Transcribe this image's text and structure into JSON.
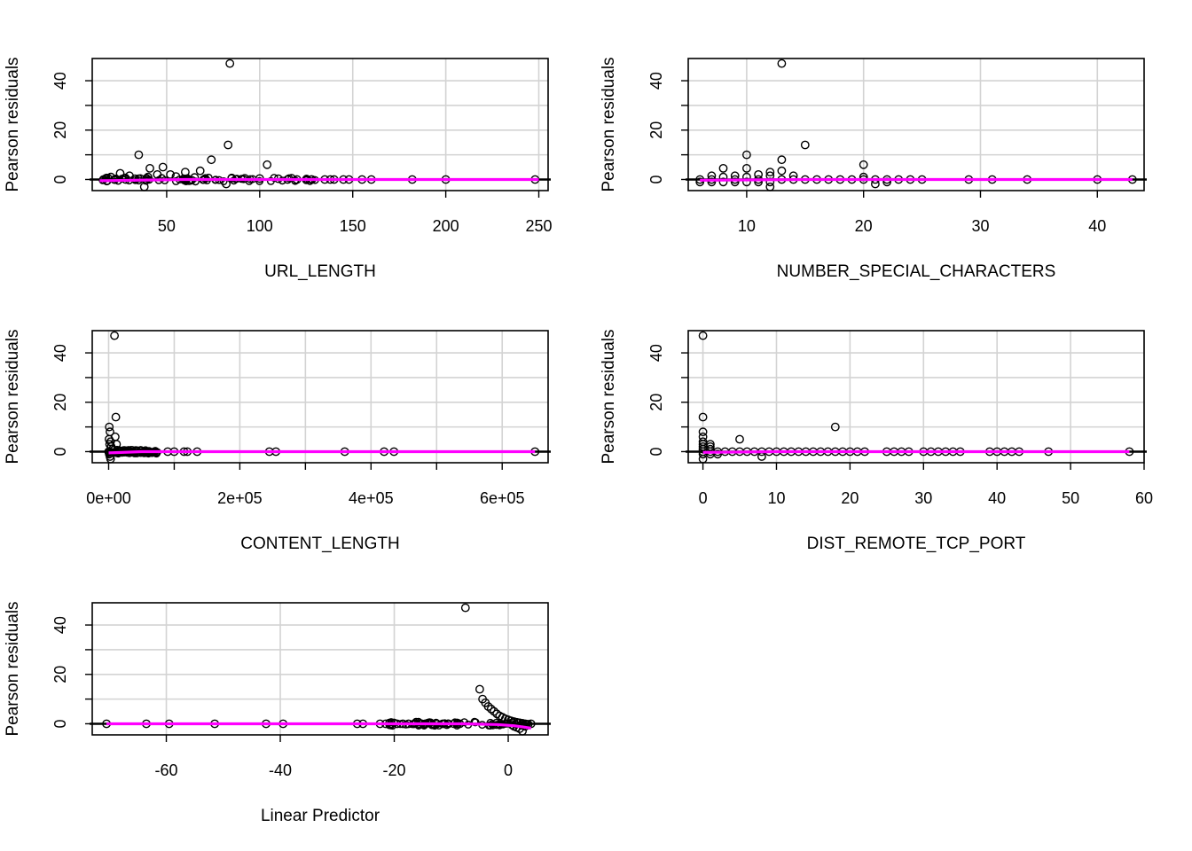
{
  "chart_data": [
    {
      "type": "scatter",
      "xlabel": "URL_LENGTH",
      "ylabel": "Pearson residuals",
      "xlim": [
        10,
        255
      ],
      "ylim": [
        -4.5,
        49
      ],
      "x_ticks": [
        50,
        100,
        150,
        200,
        250
      ],
      "x_tick_labels": [
        "50",
        "100",
        "150",
        "200",
        "250"
      ],
      "y_ticks": [
        0,
        20,
        40
      ],
      "y_tick_labels": [
        "0",
        "20",
        "40"
      ],
      "y_minor_ticks": [
        10,
        30
      ],
      "grid": true,
      "points": [
        [
          84,
          47
        ],
        [
          83,
          14
        ],
        [
          35,
          10
        ],
        [
          74,
          8
        ],
        [
          104,
          6
        ],
        [
          48,
          5
        ],
        [
          41,
          4.5
        ],
        [
          68,
          3.5
        ],
        [
          60,
          3
        ],
        [
          25,
          2.5
        ],
        [
          52,
          2
        ],
        [
          45,
          2
        ],
        [
          30,
          1.5
        ],
        [
          55,
          1.2
        ],
        [
          20,
          1
        ],
        [
          40,
          1
        ],
        [
          65,
          0.8
        ],
        [
          85,
          0.6
        ],
        [
          92,
          0.5
        ],
        [
          100,
          0.4
        ],
        [
          110,
          0.3
        ],
        [
          16,
          0
        ],
        [
          18,
          -0.5
        ],
        [
          22,
          0
        ],
        [
          28,
          0
        ],
        [
          33,
          0.3
        ],
        [
          38,
          -3
        ],
        [
          62,
          -0.5
        ],
        [
          70,
          0
        ],
        [
          82,
          -1.8
        ],
        [
          115,
          0
        ],
        [
          120,
          0
        ],
        [
          125,
          0
        ],
        [
          128,
          0
        ],
        [
          135,
          0
        ],
        [
          138,
          0
        ],
        [
          140,
          0
        ],
        [
          145,
          0
        ],
        [
          148,
          0
        ],
        [
          155,
          0
        ],
        [
          160,
          0
        ],
        [
          182,
          0
        ],
        [
          200,
          0
        ],
        [
          248,
          0
        ]
      ],
      "dense_range": [
        14,
        130
      ],
      "smooth_line": [
        [
          14,
          -0.5
        ],
        [
          60,
          0
        ],
        [
          120,
          0
        ],
        [
          250,
          0
        ]
      ],
      "line_color": "#ff00ff"
    },
    {
      "type": "scatter",
      "xlabel": "NUMBER_SPECIAL_CHARACTERS",
      "ylabel": "Pearson residuals",
      "xlim": [
        5,
        44
      ],
      "ylim": [
        -4.5,
        49
      ],
      "x_ticks": [
        10,
        20,
        30,
        40
      ],
      "x_tick_labels": [
        "10",
        "20",
        "30",
        "40"
      ],
      "y_ticks": [
        0,
        20,
        40
      ],
      "y_tick_labels": [
        "0",
        "20",
        "40"
      ],
      "y_minor_ticks": [
        10,
        30
      ],
      "grid": true,
      "points": [
        [
          13,
          47
        ],
        [
          15,
          14
        ],
        [
          10,
          10
        ],
        [
          13,
          8
        ],
        [
          20,
          6
        ],
        [
          8,
          4.5
        ],
        [
          10,
          4.5
        ],
        [
          12,
          3
        ],
        [
          13,
          3.5
        ],
        [
          14,
          1.5
        ],
        [
          6,
          0
        ],
        [
          6,
          -1
        ],
        [
          7,
          1.5
        ],
        [
          7,
          0
        ],
        [
          7,
          -1
        ],
        [
          8,
          1
        ],
        [
          8,
          -1
        ],
        [
          9,
          1.5
        ],
        [
          9,
          0
        ],
        [
          9,
          -1
        ],
        [
          10,
          1
        ],
        [
          10,
          -1
        ],
        [
          11,
          2
        ],
        [
          11,
          0
        ],
        [
          11,
          -1
        ],
        [
          12,
          1.5
        ],
        [
          12,
          -1
        ],
        [
          12,
          -3
        ],
        [
          13,
          0
        ],
        [
          14,
          0
        ],
        [
          15,
          0
        ],
        [
          16,
          0
        ],
        [
          17,
          0
        ],
        [
          18,
          0
        ],
        [
          19,
          0
        ],
        [
          20,
          0
        ],
        [
          20,
          1
        ],
        [
          21,
          -1.8
        ],
        [
          21,
          0
        ],
        [
          22,
          0
        ],
        [
          22,
          -1
        ],
        [
          23,
          0
        ],
        [
          24,
          0
        ],
        [
          25,
          0
        ],
        [
          29,
          0
        ],
        [
          31,
          0
        ],
        [
          34,
          0
        ],
        [
          40,
          0
        ],
        [
          43,
          0
        ]
      ],
      "smooth_line": [
        [
          6,
          -0.3
        ],
        [
          15,
          0
        ],
        [
          25,
          0
        ],
        [
          43,
          0
        ]
      ],
      "line_color": "#ff00ff"
    },
    {
      "type": "scatter",
      "xlabel": "CONTENT_LENGTH",
      "ylabel": "Pearson residuals",
      "xlim": [
        -25000,
        670000
      ],
      "ylim": [
        -4.5,
        49
      ],
      "x_ticks": [
        0,
        200000,
        400000,
        600000
      ],
      "x_tick_labels": [
        "0e+00",
        "2e+05",
        "4e+05",
        "6e+05"
      ],
      "x_minor_ticks": [
        100000,
        300000,
        500000
      ],
      "y_ticks": [
        0,
        20,
        40
      ],
      "y_tick_labels": [
        "0",
        "20",
        "40"
      ],
      "y_minor_ticks": [
        10,
        30
      ],
      "grid": true,
      "points": [
        [
          9000,
          47
        ],
        [
          11000,
          14
        ],
        [
          1000,
          10
        ],
        [
          2000,
          8
        ],
        [
          10000,
          6
        ],
        [
          500,
          5
        ],
        [
          3000,
          4
        ],
        [
          1500,
          3
        ],
        [
          12000,
          3
        ],
        [
          4000,
          2
        ],
        [
          6000,
          1
        ],
        [
          0,
          0
        ],
        [
          1000,
          -1
        ],
        [
          2000,
          -2
        ],
        [
          3000,
          -3
        ],
        [
          15000,
          0
        ],
        [
          25000,
          0
        ],
        [
          40000,
          0
        ],
        [
          55000,
          0
        ],
        [
          70000,
          0
        ],
        [
          90000,
          0
        ],
        [
          100000,
          0
        ],
        [
          115000,
          0
        ],
        [
          120000,
          0
        ],
        [
          135000,
          0
        ],
        [
          245000,
          0
        ],
        [
          255000,
          0
        ],
        [
          360000,
          0
        ],
        [
          420000,
          0
        ],
        [
          435000,
          0
        ],
        [
          650000,
          0
        ]
      ],
      "dense_range": [
        0,
        75000
      ],
      "smooth_line": [
        [
          0,
          -0.5
        ],
        [
          50000,
          0
        ],
        [
          200000,
          0
        ],
        [
          650000,
          0
        ]
      ],
      "line_color": "#ff00ff"
    },
    {
      "type": "scatter",
      "xlabel": "DIST_REMOTE_TCP_PORT",
      "ylabel": "Pearson residuals",
      "xlim": [
        -2,
        60
      ],
      "ylim": [
        -4.5,
        49
      ],
      "x_ticks": [
        0,
        10,
        20,
        30,
        40,
        50,
        60
      ],
      "x_tick_labels": [
        "0",
        "10",
        "20",
        "30",
        "40",
        "50",
        "60"
      ],
      "y_ticks": [
        0,
        20,
        40
      ],
      "y_tick_labels": [
        "0",
        "20",
        "40"
      ],
      "y_minor_ticks": [
        10,
        30
      ],
      "grid": true,
      "points": [
        [
          0,
          47
        ],
        [
          0,
          14
        ],
        [
          0,
          8
        ],
        [
          0,
          6
        ],
        [
          0,
          4
        ],
        [
          0,
          3
        ],
        [
          0,
          2
        ],
        [
          0,
          1
        ],
        [
          0,
          0
        ],
        [
          0,
          -1
        ],
        [
          0,
          -3
        ],
        [
          1,
          3
        ],
        [
          1,
          2
        ],
        [
          1,
          1
        ],
        [
          1,
          0
        ],
        [
          1,
          -1
        ],
        [
          2,
          0
        ],
        [
          2,
          -1
        ],
        [
          3,
          0
        ],
        [
          4,
          0
        ],
        [
          5,
          5
        ],
        [
          5,
          0
        ],
        [
          6,
          0
        ],
        [
          7,
          0
        ],
        [
          8,
          0
        ],
        [
          8,
          -2
        ],
        [
          9,
          0
        ],
        [
          10,
          0
        ],
        [
          11,
          0
        ],
        [
          12,
          0
        ],
        [
          13,
          0
        ],
        [
          14,
          0
        ],
        [
          15,
          0
        ],
        [
          16,
          0
        ],
        [
          17,
          0
        ],
        [
          18,
          10
        ],
        [
          18,
          0
        ],
        [
          19,
          0
        ],
        [
          20,
          0
        ],
        [
          21,
          0
        ],
        [
          22,
          0
        ],
        [
          25,
          0
        ],
        [
          26,
          0
        ],
        [
          27,
          0
        ],
        [
          28,
          0
        ],
        [
          30,
          0
        ],
        [
          31,
          0
        ],
        [
          32,
          0
        ],
        [
          33,
          0
        ],
        [
          34,
          0
        ],
        [
          35,
          0
        ],
        [
          39,
          0
        ],
        [
          40,
          0
        ],
        [
          41,
          0
        ],
        [
          42,
          0
        ],
        [
          43,
          0
        ],
        [
          47,
          0
        ],
        [
          58,
          0
        ]
      ],
      "smooth_line": [
        [
          0,
          -0.3
        ],
        [
          10,
          0
        ],
        [
          30,
          0
        ],
        [
          58,
          0
        ]
      ],
      "line_color": "#ff00ff"
    },
    {
      "type": "scatter",
      "xlabel": "Linear Predictor",
      "ylabel": "Pearson residuals",
      "xlim": [
        -73,
        7
      ],
      "ylim": [
        -4.5,
        49
      ],
      "x_ticks": [
        -60,
        -40,
        -20,
        0
      ],
      "x_tick_labels": [
        "-60",
        "-40",
        "-20",
        "0"
      ],
      "y_ticks": [
        0,
        20,
        40
      ],
      "y_tick_labels": [
        "0",
        "20",
        "40"
      ],
      "y_minor_ticks": [
        10,
        30
      ],
      "grid": true,
      "points": [
        [
          -70.5,
          0
        ],
        [
          -63.5,
          0
        ],
        [
          -59.5,
          0
        ],
        [
          -51.5,
          0
        ],
        [
          -42.5,
          0
        ],
        [
          -39.5,
          0
        ],
        [
          -26.5,
          0
        ],
        [
          -25.5,
          0
        ],
        [
          -22.5,
          0
        ],
        [
          -21.5,
          0
        ],
        [
          -20.5,
          0
        ],
        [
          -19.5,
          0
        ],
        [
          -18.5,
          0
        ],
        [
          -17.5,
          0
        ],
        [
          -16.5,
          0
        ],
        [
          -15.5,
          0
        ],
        [
          -14.5,
          0
        ],
        [
          -13.5,
          0
        ],
        [
          -12.5,
          0
        ],
        [
          -11.5,
          0
        ],
        [
          -10.5,
          0
        ],
        [
          -9.5,
          0
        ],
        [
          -8.5,
          0
        ],
        [
          -7.5,
          47
        ],
        [
          -5,
          14
        ],
        [
          -4.5,
          10
        ],
        [
          -4,
          8.5
        ],
        [
          -3.5,
          7
        ],
        [
          -3,
          6
        ],
        [
          -2.5,
          5
        ],
        [
          -2,
          4
        ],
        [
          -1.5,
          3.2
        ],
        [
          -1,
          2.6
        ],
        [
          -0.5,
          2
        ],
        [
          0,
          1.6
        ],
        [
          0.5,
          1.2
        ],
        [
          1,
          0.9
        ],
        [
          1.5,
          0.6
        ],
        [
          2,
          0.4
        ],
        [
          2.5,
          0.2
        ],
        [
          3,
          0
        ],
        [
          3.5,
          -0.2
        ],
        [
          1,
          -1
        ],
        [
          1.5,
          -1.5
        ],
        [
          2,
          -2
        ],
        [
          2.5,
          -3
        ],
        [
          3,
          -1
        ],
        [
          4,
          0
        ]
      ],
      "dense_range": [
        -22,
        4
      ],
      "smooth_line": [
        [
          -70.5,
          0
        ],
        [
          -40,
          0
        ],
        [
          -20,
          0
        ],
        [
          -8,
          0
        ],
        [
          -2,
          -0.3
        ],
        [
          1,
          -0.8
        ],
        [
          3,
          -1.4
        ],
        [
          4,
          -1.8
        ]
      ],
      "line_color": "#ff00ff"
    }
  ]
}
